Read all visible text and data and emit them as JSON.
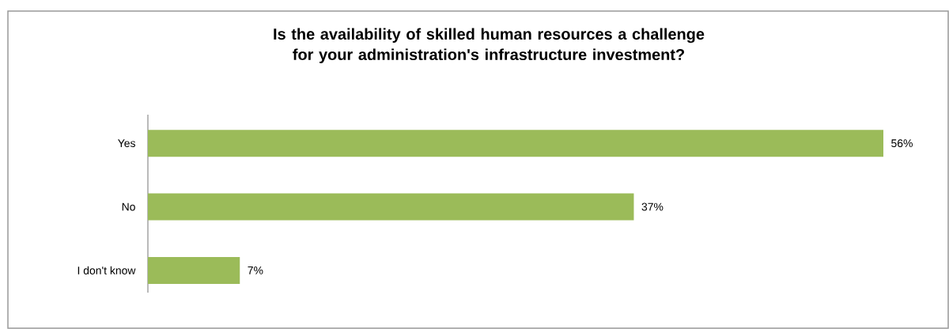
{
  "chart_data": {
    "type": "bar",
    "orientation": "horizontal",
    "title": "Is the availability of skilled human resources a challenge for your administration's infrastructure investment?",
    "categories": [
      "Yes",
      "No",
      "I don't know"
    ],
    "values": [
      56,
      37,
      7
    ],
    "value_labels": [
      "56%",
      "37%",
      "7%"
    ],
    "color": "#9bbb59",
    "tick_labels": "y"
  }
}
